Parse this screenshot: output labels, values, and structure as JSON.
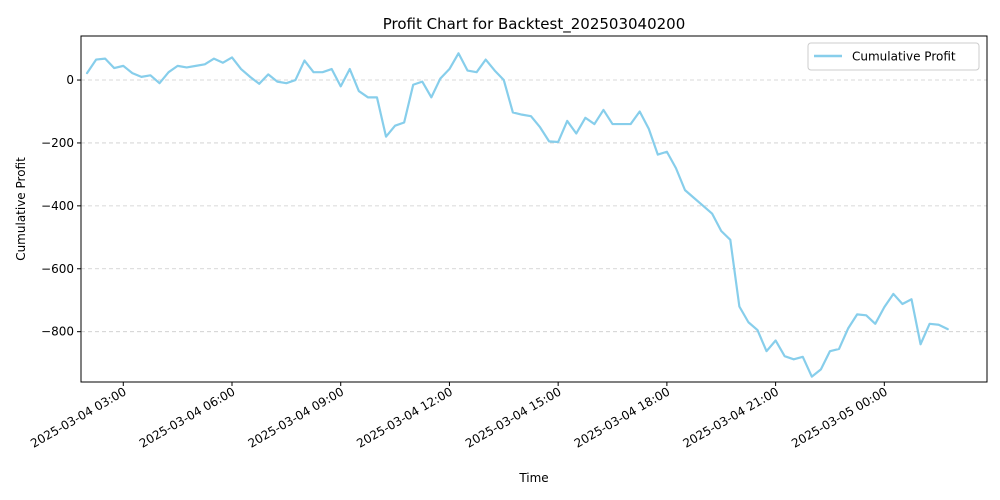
{
  "chart_data": {
    "type": "line",
    "title": "Profit Chart for Backtest_202503040200",
    "xlabel": "Time",
    "ylabel": "Cumulative Profit",
    "x_start": "2025-03-04 02:00",
    "x_interval_minutes": 15,
    "xlim": [
      "2025-03-04 01:50",
      "2025-03-05 02:50"
    ],
    "ylim": [
      -960,
      140
    ],
    "xticks": [
      "2025-03-04 03:00",
      "2025-03-04 06:00",
      "2025-03-04 09:00",
      "2025-03-04 12:00",
      "2025-03-04 15:00",
      "2025-03-04 18:00",
      "2025-03-04 21:00",
      "2025-03-05 00:00"
    ],
    "yticks": [
      0,
      -200,
      -400,
      -600,
      -800
    ],
    "ytick_labels": [
      "0",
      "−200",
      "−400",
      "−600",
      "−800"
    ],
    "grid": "y-dashed",
    "legend_position": "top-right",
    "series": [
      {
        "name": "Cumulative Profit",
        "color": "#87ceeb",
        "values": [
          22,
          65,
          68,
          38,
          45,
          22,
          10,
          15,
          -10,
          25,
          45,
          40,
          45,
          50,
          68,
          55,
          72,
          35,
          10,
          -12,
          18,
          -5,
          -10,
          0,
          62,
          25,
          25,
          35,
          -20,
          35,
          -35,
          -55,
          -55,
          -180,
          -145,
          -135,
          -15,
          -5,
          -55,
          5,
          35,
          85,
          30,
          25,
          65,
          30,
          0,
          -103,
          -110,
          -115,
          -150,
          -195,
          -197,
          -130,
          -170,
          -120,
          -140,
          -95,
          -140,
          -140,
          -140,
          -100,
          -155,
          -237,
          -228,
          -280,
          -350,
          -375,
          -400,
          -425,
          -480,
          -508,
          -720,
          -770,
          -795,
          -862,
          -828,
          -878,
          -888,
          -880,
          -943,
          -920,
          -862,
          -855,
          -790,
          -745,
          -748,
          -775,
          -722,
          -680,
          -712,
          -697,
          -840,
          -775,
          -778,
          -792
        ]
      }
    ]
  }
}
